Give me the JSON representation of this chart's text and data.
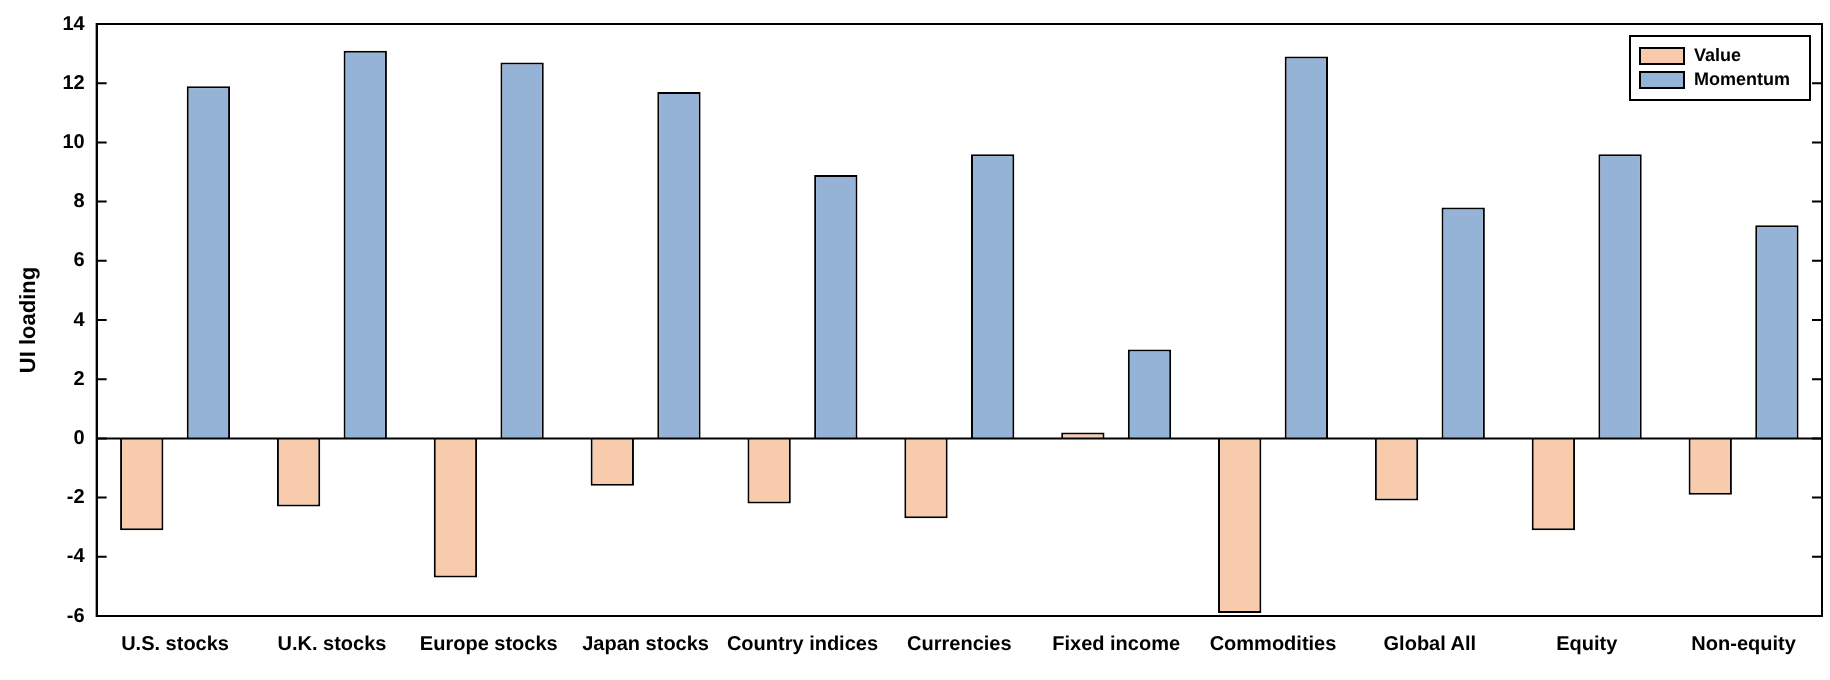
{
  "chart_data": {
    "type": "bar",
    "ylabel": "UI loading",
    "categories": [
      "U.S. stocks",
      "U.K. stocks",
      "Europe stocks",
      "Japan stocks",
      "Country indices",
      "Currencies",
      "Fixed income",
      "Commodities",
      "Global All",
      "Equity",
      "Non-equity"
    ],
    "series": [
      {
        "name": "Value",
        "color": "#f8cbad",
        "values": [
          -3.1,
          -2.3,
          -4.7,
          -1.6,
          -2.2,
          -2.7,
          0.2,
          -5.9,
          -2.1,
          -3.1,
          -1.9
        ]
      },
      {
        "name": "Momentum",
        "color": "#95b3d7",
        "values": [
          11.9,
          13.1,
          12.7,
          11.7,
          8.9,
          9.6,
          3.0,
          12.9,
          7.8,
          9.6,
          7.2
        ]
      }
    ],
    "ylim": [
      -6,
      14
    ],
    "yticks": [
      -6,
      -4,
      -2,
      0,
      2,
      4,
      6,
      8,
      10,
      12,
      14
    ],
    "ref_lines": [
      {
        "axis": "y",
        "value": 0,
        "color": "#000000"
      }
    ],
    "grid": false,
    "legend": "top right"
  }
}
